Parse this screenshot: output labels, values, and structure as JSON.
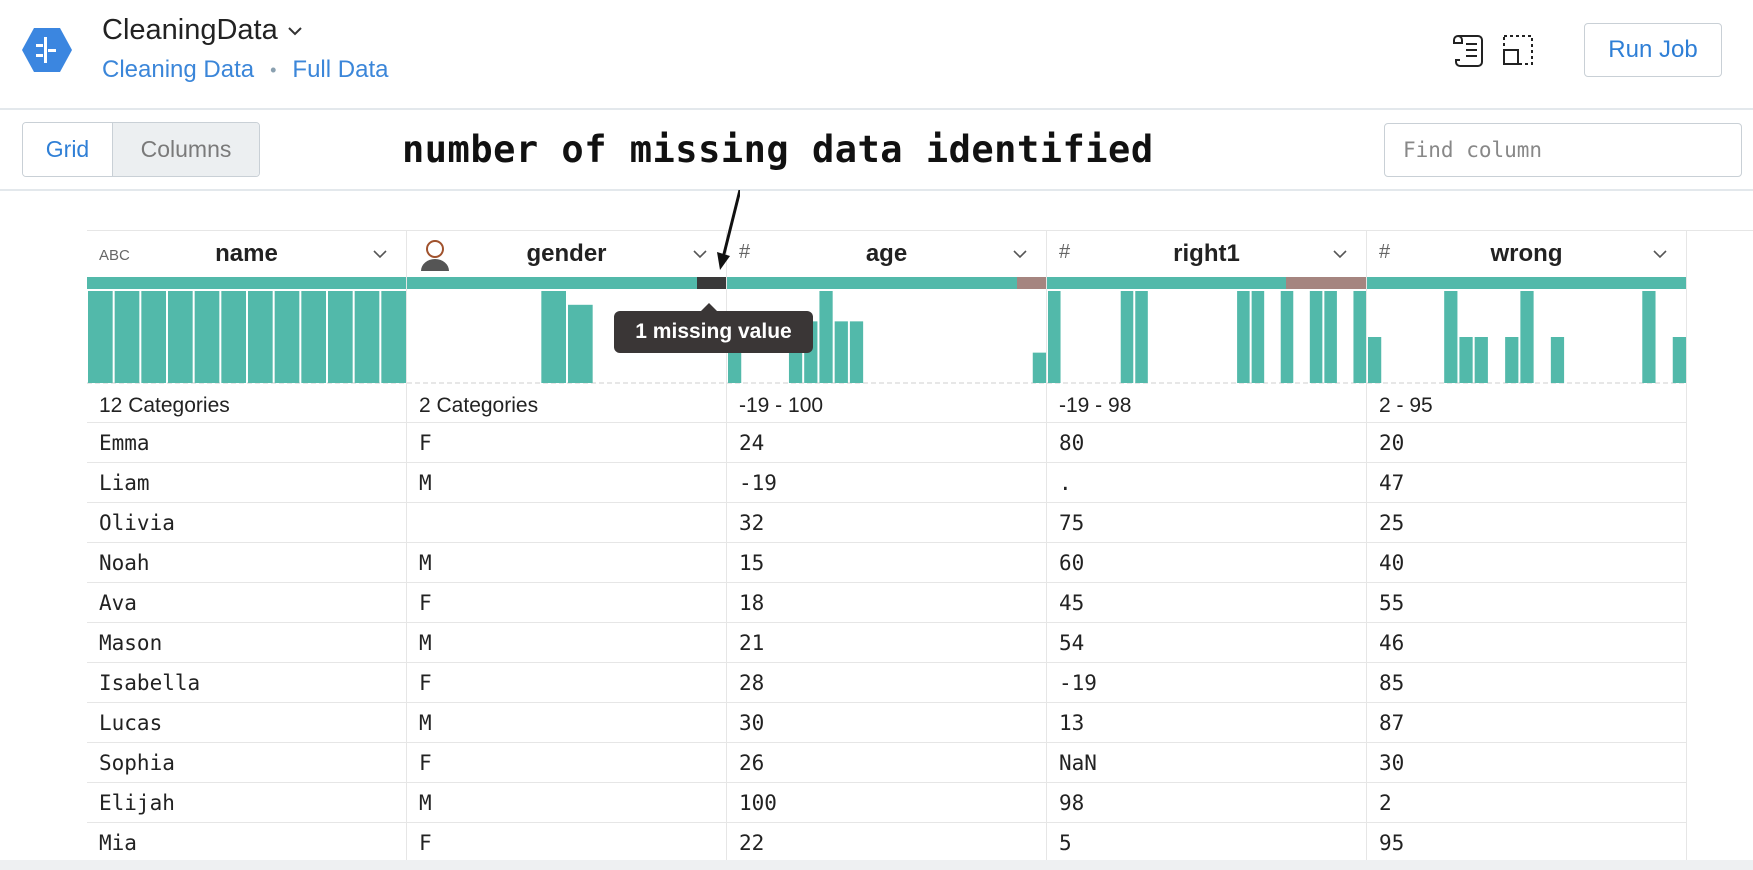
{
  "app": {
    "title": "CleaningData",
    "breadcrumbs": [
      "Cleaning Data",
      "Full Data"
    ],
    "run_button": "Run Job"
  },
  "toolbar": {
    "view_tabs": [
      "Grid",
      "Columns"
    ],
    "active_tab": "Grid",
    "find_placeholder": "Find column"
  },
  "annotation": "number of missing data identified",
  "tooltip": "1 missing value",
  "colors": {
    "accent": "#2f7fd6",
    "valid": "#52b9aa",
    "mismatched": "#a58580",
    "missing": "#3a3a3a"
  },
  "columns": [
    {
      "name": "name",
      "type_icon": "ABC",
      "range": "12 Categories",
      "quality": {
        "valid": 1.0,
        "mismatched": 0,
        "missing": 0
      },
      "histogram": [
        1,
        1,
        1,
        1,
        1,
        1,
        1,
        1,
        1,
        1,
        1,
        1
      ]
    },
    {
      "name": "gender",
      "type_icon": "person-icon",
      "range": "2 Categories",
      "quality": {
        "valid": 0.91,
        "mismatched": 0,
        "missing": 0.09
      },
      "histogram": [
        0,
        0,
        0,
        0,
        0,
        1.0,
        0.85,
        0,
        0,
        0,
        0,
        0
      ]
    },
    {
      "name": "age",
      "type_icon": "#",
      "range": "-19 - 100",
      "quality": {
        "valid": 0.91,
        "mismatched": 0.09,
        "missing": 0
      },
      "histogram": [
        0.33,
        0,
        0,
        0,
        0.33,
        0.67,
        1.0,
        0.67,
        0.67,
        0,
        0,
        0,
        0,
        0,
        0,
        0,
        0,
        0,
        0,
        0,
        0.33
      ]
    },
    {
      "name": "right1",
      "type_icon": "#",
      "range": "-19 - 98",
      "quality": {
        "valid": 0.75,
        "mismatched": 0.25,
        "missing": 0
      },
      "histogram": [
        1,
        0,
        0,
        0,
        0,
        1,
        1,
        0,
        0,
        0,
        0,
        0,
        0,
        1,
        1,
        0,
        1,
        0,
        1,
        1,
        0,
        1
      ]
    },
    {
      "name": "wrong",
      "type_icon": "#",
      "range": "2 - 95",
      "quality": {
        "valid": 1.0,
        "mismatched": 0,
        "missing": 0
      },
      "histogram": [
        0.5,
        0,
        0,
        0,
        0,
        1,
        0.5,
        0.5,
        0,
        0.5,
        1,
        0,
        0.5,
        0,
        0,
        0,
        0,
        0,
        1,
        0,
        0.5
      ]
    }
  ],
  "rows": [
    [
      "Emma",
      "F",
      "24",
      "80",
      "20"
    ],
    [
      "Liam",
      "M",
      "-19",
      ".",
      "47"
    ],
    [
      "Olivia",
      "",
      "32",
      "75",
      "25"
    ],
    [
      "Noah",
      "M",
      "15",
      "60",
      "40"
    ],
    [
      "Ava",
      "F",
      "18",
      "45",
      "55"
    ],
    [
      "Mason",
      "M",
      "21",
      "54",
      "46"
    ],
    [
      "Isabella",
      "F",
      "28",
      "-19",
      "85"
    ],
    [
      "Lucas",
      "M",
      "30",
      "13",
      "87"
    ],
    [
      "Sophia",
      "F",
      "26",
      "NaN",
      "30"
    ],
    [
      "Elijah",
      "M",
      "100",
      "98",
      "2"
    ],
    [
      "Mia",
      "F",
      "22",
      "5",
      "95"
    ]
  ]
}
